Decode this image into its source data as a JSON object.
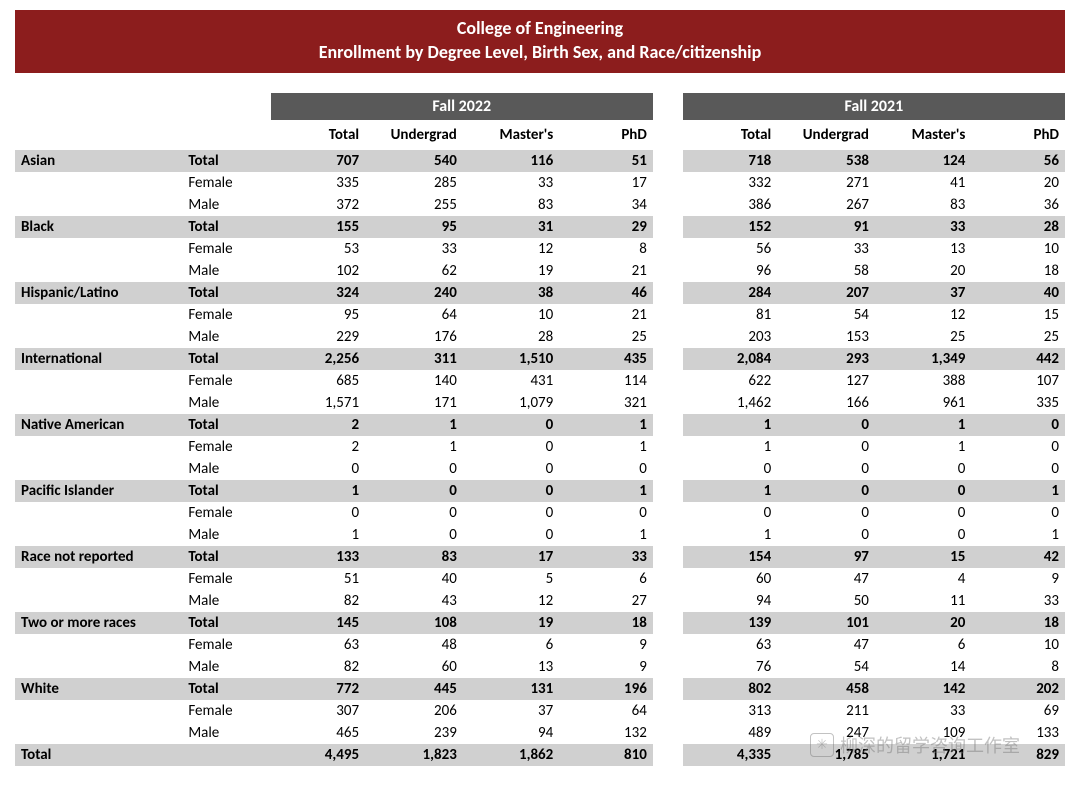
{
  "header": {
    "line1": "College of Engineering",
    "line2": "Enrollment by Degree Level, Birth Sex, and Race/citizenship"
  },
  "colors": {
    "header_bg": "#8c1d1d",
    "header_text": "#ffffff",
    "yearband_bg": "#595959",
    "yearband_text": "#ffffff",
    "row_shade": "#d0d0d0",
    "background": "#ffffff",
    "text": "#000000"
  },
  "years": {
    "left": {
      "label": "Fall 2022",
      "cols": [
        "Total",
        "Undergrad",
        "Master's",
        "PhD"
      ]
    },
    "right": {
      "label": "Fall 2021",
      "cols": [
        "Total",
        "Undergrad",
        "Master's",
        "PhD"
      ]
    }
  },
  "categories": [
    {
      "name": "Asian",
      "rows": [
        {
          "sex": "Total",
          "left": [
            "707",
            "540",
            "116",
            "51"
          ],
          "right": [
            "718",
            "538",
            "124",
            "56"
          ],
          "bold": true
        },
        {
          "sex": "Female",
          "left": [
            "335",
            "285",
            "33",
            "17"
          ],
          "right": [
            "332",
            "271",
            "41",
            "20"
          ]
        },
        {
          "sex": "Male",
          "left": [
            "372",
            "255",
            "83",
            "34"
          ],
          "right": [
            "386",
            "267",
            "83",
            "36"
          ]
        }
      ]
    },
    {
      "name": "Black",
      "rows": [
        {
          "sex": "Total",
          "left": [
            "155",
            "95",
            "31",
            "29"
          ],
          "right": [
            "152",
            "91",
            "33",
            "28"
          ],
          "bold": true
        },
        {
          "sex": "Female",
          "left": [
            "53",
            "33",
            "12",
            "8"
          ],
          "right": [
            "56",
            "33",
            "13",
            "10"
          ]
        },
        {
          "sex": "Male",
          "left": [
            "102",
            "62",
            "19",
            "21"
          ],
          "right": [
            "96",
            "58",
            "20",
            "18"
          ]
        }
      ]
    },
    {
      "name": "Hispanic/Latino",
      "rows": [
        {
          "sex": "Total",
          "left": [
            "324",
            "240",
            "38",
            "46"
          ],
          "right": [
            "284",
            "207",
            "37",
            "40"
          ],
          "bold": true
        },
        {
          "sex": "Female",
          "left": [
            "95",
            "64",
            "10",
            "21"
          ],
          "right": [
            "81",
            "54",
            "12",
            "15"
          ]
        },
        {
          "sex": "Male",
          "left": [
            "229",
            "176",
            "28",
            "25"
          ],
          "right": [
            "203",
            "153",
            "25",
            "25"
          ]
        }
      ]
    },
    {
      "name": "International",
      "rows": [
        {
          "sex": "Total",
          "left": [
            "2,256",
            "311",
            "1,510",
            "435"
          ],
          "right": [
            "2,084",
            "293",
            "1,349",
            "442"
          ],
          "bold": true
        },
        {
          "sex": "Female",
          "left": [
            "685",
            "140",
            "431",
            "114"
          ],
          "right": [
            "622",
            "127",
            "388",
            "107"
          ]
        },
        {
          "sex": "Male",
          "left": [
            "1,571",
            "171",
            "1,079",
            "321"
          ],
          "right": [
            "1,462",
            "166",
            "961",
            "335"
          ]
        }
      ]
    },
    {
      "name": "Native American",
      "rows": [
        {
          "sex": "Total",
          "left": [
            "2",
            "1",
            "0",
            "1"
          ],
          "right": [
            "1",
            "0",
            "1",
            "0"
          ],
          "bold": true
        },
        {
          "sex": "Female",
          "left": [
            "2",
            "1",
            "0",
            "1"
          ],
          "right": [
            "1",
            "0",
            "1",
            "0"
          ]
        },
        {
          "sex": "Male",
          "left": [
            "0",
            "0",
            "0",
            "0"
          ],
          "right": [
            "0",
            "0",
            "0",
            "0"
          ]
        }
      ]
    },
    {
      "name": "Pacific Islander",
      "rows": [
        {
          "sex": "Total",
          "left": [
            "1",
            "0",
            "0",
            "1"
          ],
          "right": [
            "1",
            "0",
            "0",
            "1"
          ],
          "bold": true
        },
        {
          "sex": "Female",
          "left": [
            "0",
            "0",
            "0",
            "0"
          ],
          "right": [
            "0",
            "0",
            "0",
            "0"
          ]
        },
        {
          "sex": "Male",
          "left": [
            "1",
            "0",
            "0",
            "1"
          ],
          "right": [
            "1",
            "0",
            "0",
            "1"
          ]
        }
      ]
    },
    {
      "name": "Race not reported",
      "rows": [
        {
          "sex": "Total",
          "left": [
            "133",
            "83",
            "17",
            "33"
          ],
          "right": [
            "154",
            "97",
            "15",
            "42"
          ],
          "bold": true
        },
        {
          "sex": "Female",
          "left": [
            "51",
            "40",
            "5",
            "6"
          ],
          "right": [
            "60",
            "47",
            "4",
            "9"
          ]
        },
        {
          "sex": "Male",
          "left": [
            "82",
            "43",
            "12",
            "27"
          ],
          "right": [
            "94",
            "50",
            "11",
            "33"
          ]
        }
      ]
    },
    {
      "name": "Two or more races",
      "rows": [
        {
          "sex": "Total",
          "left": [
            "145",
            "108",
            "19",
            "18"
          ],
          "right": [
            "139",
            "101",
            "20",
            "18"
          ],
          "bold": true
        },
        {
          "sex": "Female",
          "left": [
            "63",
            "48",
            "6",
            "9"
          ],
          "right": [
            "63",
            "47",
            "6",
            "10"
          ]
        },
        {
          "sex": "Male",
          "left": [
            "82",
            "60",
            "13",
            "9"
          ],
          "right": [
            "76",
            "54",
            "14",
            "8"
          ]
        }
      ]
    },
    {
      "name": "White",
      "rows": [
        {
          "sex": "Total",
          "left": [
            "772",
            "445",
            "131",
            "196"
          ],
          "right": [
            "802",
            "458",
            "142",
            "202"
          ],
          "bold": true
        },
        {
          "sex": "Female",
          "left": [
            "307",
            "206",
            "37",
            "64"
          ],
          "right": [
            "313",
            "211",
            "33",
            "69"
          ]
        },
        {
          "sex": "Male",
          "left": [
            "465",
            "239",
            "94",
            "132"
          ],
          "right": [
            "489",
            "247",
            "109",
            "133"
          ]
        }
      ]
    }
  ],
  "grand_total": {
    "label": "Total",
    "left": [
      "4,495",
      "1,823",
      "1,862",
      "810"
    ],
    "right": [
      "4,335",
      "1,785",
      "1,721",
      "829"
    ]
  },
  "watermark": {
    "text": "柳深的留学咨询工作室"
  }
}
